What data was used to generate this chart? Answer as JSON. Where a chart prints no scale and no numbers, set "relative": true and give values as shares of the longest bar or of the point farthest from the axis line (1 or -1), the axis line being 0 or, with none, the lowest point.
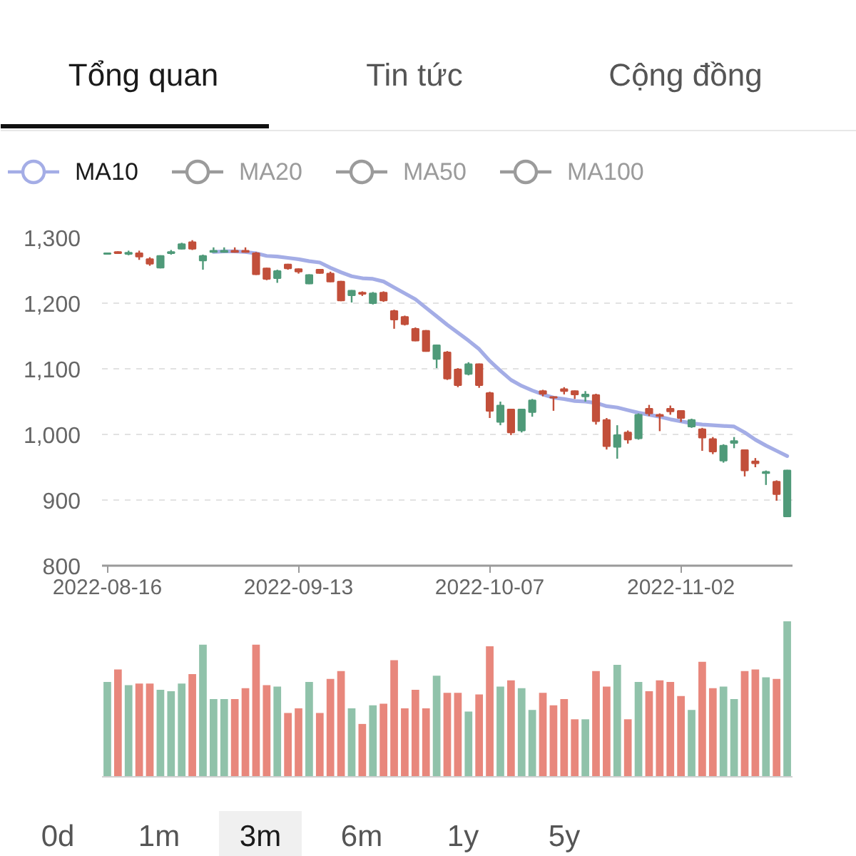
{
  "chart_data": [
    {
      "type": "candlestick",
      "categories": [
        "2022-08-16",
        null,
        null,
        null,
        null,
        null,
        null,
        null,
        null,
        null,
        null,
        null,
        null,
        null,
        null,
        null,
        null,
        null,
        "2022-09-13",
        null,
        null,
        null,
        null,
        null,
        null,
        null,
        null,
        null,
        null,
        null,
        null,
        null,
        null,
        null,
        null,
        null,
        "2022-10-07",
        null,
        null,
        null,
        null,
        null,
        null,
        null,
        null,
        null,
        null,
        null,
        null,
        null,
        null,
        null,
        null,
        null,
        "2022-11-02",
        null,
        null,
        null,
        null,
        null,
        null,
        null,
        null,
        null,
        null
      ],
      "ohlc": [
        [
          1275,
          1277,
          1274,
          1276
        ],
        [
          1278,
          1279,
          1275,
          1276
        ],
        [
          1275,
          1280,
          1273,
          1277
        ],
        [
          1276,
          1280,
          1266,
          1271
        ],
        [
          1267,
          1270,
          1257,
          1260
        ],
        [
          1254,
          1273,
          1253,
          1272
        ],
        [
          1276,
          1281,
          1274,
          1278
        ],
        [
          1283,
          1292,
          1282,
          1290
        ],
        [
          1293,
          1296,
          1281,
          1283
        ],
        [
          1265,
          1274,
          1251,
          1272
        ],
        [
          1278,
          1285,
          1277,
          1280
        ],
        [
          1278,
          1285,
          1277,
          1280
        ],
        [
          1280,
          1285,
          1277,
          1278
        ],
        [
          1280,
          1285,
          1277,
          1278
        ],
        [
          1276,
          1278,
          1243,
          1244
        ],
        [
          1253,
          1254,
          1235,
          1237
        ],
        [
          1238,
          1251,
          1231,
          1249
        ],
        [
          1259,
          1260,
          1251,
          1253
        ],
        [
          1252,
          1253,
          1245,
          1248
        ],
        [
          1230,
          1244,
          1229,
          1243
        ],
        [
          1251,
          1252,
          1245,
          1246
        ],
        [
          1245,
          1248,
          1232,
          1233
        ],
        [
          1233,
          1234,
          1203,
          1204
        ],
        [
          1212,
          1220,
          1201,
          1219
        ],
        [
          1216,
          1218,
          1211,
          1214
        ],
        [
          1200,
          1217,
          1198,
          1215
        ],
        [
          1216,
          1218,
          1202,
          1204
        ],
        [
          1188,
          1190,
          1161,
          1175
        ],
        [
          1179,
          1181,
          1166,
          1168
        ],
        [
          1161,
          1163,
          1142,
          1143
        ],
        [
          1158,
          1159,
          1126,
          1127
        ],
        [
          1115,
          1137,
          1101,
          1136
        ],
        [
          1125,
          1127,
          1083,
          1085
        ],
        [
          1099,
          1101,
          1072,
          1075
        ],
        [
          1092,
          1110,
          1090,
          1107
        ],
        [
          1107,
          1108,
          1071,
          1075
        ],
        [
          1063,
          1065,
          1025,
          1036
        ],
        [
          1019,
          1050,
          1014,
          1044
        ],
        [
          1038,
          1039,
          999,
          1003
        ],
        [
          1006,
          1039,
          1003,
          1038
        ],
        [
          1034,
          1054,
          1027,
          1052
        ],
        [
          1066,
          1068,
          1058,
          1062
        ],
        [
          1057,
          1058,
          1036,
          1056
        ],
        [
          1069,
          1072,
          1061,
          1066
        ],
        [
          1066,
          1067,
          1054,
          1061
        ],
        [
          1058,
          1066,
          1050,
          1061
        ],
        [
          1060,
          1062,
          1015,
          1020
        ],
        [
          1022,
          1025,
          977,
          982
        ],
        [
          981,
          1014,
          963,
          999
        ],
        [
          1003,
          1006,
          986,
          992
        ],
        [
          994,
          1032,
          992,
          1030
        ],
        [
          1039,
          1045,
          1028,
          1032
        ],
        [
          1030,
          1032,
          1005,
          1028
        ],
        [
          1039,
          1044,
          1030,
          1035
        ],
        [
          1036,
          1037,
          1019,
          1025
        ],
        [
          1012,
          1024,
          1010,
          1022
        ],
        [
          1008,
          1010,
          975,
          995
        ],
        [
          993,
          996,
          970,
          974
        ],
        [
          960,
          985,
          957,
          983
        ],
        [
          987,
          996,
          979,
          990
        ],
        [
          976,
          977,
          936,
          945
        ],
        [
          959,
          964,
          950,
          956
        ],
        [
          941,
          945,
          923,
          943
        ],
        [
          928,
          930,
          899,
          909
        ],
        [
          875,
          946,
          874,
          945
        ]
      ],
      "colors": [
        "#4f9a79",
        "#c24f3a",
        "#4f9a79",
        "#c24f3a",
        "#c24f3a",
        "#4f9a79",
        "#4f9a79",
        "#4f9a79",
        "#c24f3a",
        "#4f9a79",
        "#4f9a79",
        "#4f9a79",
        "#c24f3a",
        "#c24f3a",
        "#c24f3a",
        "#c24f3a",
        "#4f9a79",
        "#c24f3a",
        "#c24f3a",
        "#4f9a79",
        "#c24f3a",
        "#c24f3a",
        "#c24f3a",
        "#4f9a79",
        "#c24f3a",
        "#4f9a79",
        "#c24f3a",
        "#c24f3a",
        "#c24f3a",
        "#c24f3a",
        "#c24f3a",
        "#4f9a79",
        "#c24f3a",
        "#c24f3a",
        "#4f9a79",
        "#c24f3a",
        "#c24f3a",
        "#4f9a79",
        "#c24f3a",
        "#4f9a79",
        "#4f9a79",
        "#c24f3a",
        "#c24f3a",
        "#c24f3a",
        "#c24f3a",
        "#4f9a79",
        "#c24f3a",
        "#c24f3a",
        "#4f9a79",
        "#c24f3a",
        "#4f9a79",
        "#c24f3a",
        "#c24f3a",
        "#c24f3a",
        "#c24f3a",
        "#4f9a79",
        "#c24f3a",
        "#c24f3a",
        "#4f9a79",
        "#4f9a79",
        "#c24f3a",
        "#c24f3a",
        "#4f9a79",
        "#c24f3a",
        "#4f9a79"
      ],
      "series": [
        {
          "name": "MA10",
          "type": "line",
          "color": "#a4ade6",
          "values": [
            null,
            null,
            null,
            null,
            null,
            null,
            null,
            null,
            null,
            null,
            1278,
            1279,
            1279,
            1278,
            1276,
            1272,
            1271,
            1269,
            1267,
            1264,
            1262,
            1254,
            1247,
            1241,
            1238,
            1237,
            1233,
            1224,
            1215,
            1206,
            1193,
            1180,
            1167,
            1155,
            1143,
            1130,
            1112,
            1097,
            1083,
            1074,
            1067,
            1061,
            1056,
            1054,
            1051,
            1050,
            1048,
            1043,
            1041,
            1037,
            1033,
            1030,
            1027,
            1023,
            1020,
            1017,
            1015,
            1014,
            1013,
            1012,
            1003,
            992,
            983,
            975,
            967
          ]
        },
        {
          "name": "MA20",
          "type": "line",
          "color": "#9b9b9b",
          "values": [
            null,
            null,
            null,
            null,
            null,
            null,
            null,
            null,
            null,
            null,
            null,
            null,
            null,
            null,
            null,
            null,
            null,
            null,
            null,
            null,
            null,
            null,
            null,
            null,
            null,
            null,
            null,
            null,
            null,
            null,
            null,
            null,
            null,
            null,
            null,
            null,
            null,
            null,
            null,
            null,
            null,
            null,
            null,
            null,
            null,
            null,
            null,
            null,
            null,
            null,
            null,
            null,
            null,
            null,
            null,
            null,
            null,
            null,
            null,
            null,
            null,
            null,
            null,
            null,
            null
          ]
        },
        {
          "name": "MA50",
          "type": "line",
          "color": "#9b9b9b",
          "values": [
            null,
            null,
            null,
            null,
            null,
            null,
            null,
            null,
            null,
            null,
            null,
            null,
            null,
            null,
            null,
            null,
            null,
            null,
            null,
            null,
            null,
            null,
            null,
            null,
            null,
            null,
            null,
            null,
            null,
            null,
            null,
            null,
            null,
            null,
            null,
            null,
            null,
            null,
            null,
            null,
            null,
            null,
            null,
            null,
            null,
            null,
            null,
            null,
            null,
            null,
            null,
            null,
            null,
            null,
            null,
            null,
            null,
            null,
            null,
            null,
            null,
            null,
            null,
            null,
            null
          ]
        },
        {
          "name": "MA100",
          "type": "line",
          "color": "#9b9b9b",
          "values": [
            null,
            null,
            null,
            null,
            null,
            null,
            null,
            null,
            null,
            null,
            null,
            null,
            null,
            null,
            null,
            null,
            null,
            null,
            null,
            null,
            null,
            null,
            null,
            null,
            null,
            null,
            null,
            null,
            null,
            null,
            null,
            null,
            null,
            null,
            null,
            null,
            null,
            null,
            null,
            null,
            null,
            null,
            null,
            null,
            null,
            null,
            null,
            null,
            null,
            null,
            null,
            null,
            null,
            null,
            null,
            null,
            null,
            null,
            null,
            null,
            null,
            null,
            null,
            null,
            null
          ]
        }
      ],
      "ylim": [
        800,
        1300
      ],
      "yticks": [
        800,
        900,
        {
          "value": 1000,
          "label": "1,000"
        },
        {
          "value": 1100,
          "label": "1,100"
        },
        {
          "value": 1200,
          "label": "1,200"
        },
        {
          "value": 1300,
          "label": "1,300"
        }
      ],
      "grid": "y",
      "legend": "top left",
      "annotations": [
        "Tổng quan",
        "Tin tức",
        "Cộng đồng",
        "0d",
        "1m",
        "3m",
        "6m",
        "1y",
        "5y"
      ]
    },
    {
      "type": "bar",
      "relative": true,
      "tick_labels": false,
      "categories": [
        "2022-08-16",
        null,
        null,
        null,
        null,
        null,
        null,
        null,
        null,
        null,
        null,
        null,
        null,
        null,
        null,
        null,
        null,
        null,
        "2022-09-13",
        null,
        null,
        null,
        null,
        null,
        null,
        null,
        null,
        null,
        null,
        null,
        null,
        null,
        null,
        null,
        null,
        null,
        "2022-10-07",
        null,
        null,
        null,
        null,
        null,
        null,
        null,
        null,
        null,
        null,
        null,
        null,
        null,
        null,
        null,
        null,
        null,
        "2022-11-02",
        null,
        null,
        null,
        null,
        null,
        null,
        null,
        null,
        null,
        null
      ],
      "values": [
        0.61,
        0.69,
        0.59,
        0.6,
        0.6,
        0.56,
        0.55,
        0.6,
        0.66,
        0.85,
        0.5,
        0.5,
        0.5,
        0.57,
        0.85,
        0.59,
        0.58,
        0.41,
        0.44,
        0.61,
        0.41,
        0.63,
        0.68,
        0.44,
        0.34,
        0.46,
        0.47,
        0.75,
        0.44,
        0.56,
        0.44,
        0.65,
        0.54,
        0.54,
        0.42,
        0.53,
        0.84,
        0.58,
        0.62,
        0.57,
        0.43,
        0.54,
        0.46,
        0.5,
        0.37,
        0.37,
        0.68,
        0.58,
        0.72,
        0.37,
        0.61,
        0.55,
        0.62,
        0.61,
        0.52,
        0.43,
        0.74,
        0.57,
        0.58,
        0.5,
        0.68,
        0.69,
        0.64,
        0.63,
        1
      ],
      "colors": [
        "#90c2aa",
        "#e8877c",
        "#90c2aa",
        "#e8877c",
        "#e8877c",
        "#90c2aa",
        "#90c2aa",
        "#90c2aa",
        "#e8877c",
        "#90c2aa",
        "#90c2aa",
        "#90c2aa",
        "#e8877c",
        "#e8877c",
        "#e8877c",
        "#e8877c",
        "#90c2aa",
        "#e8877c",
        "#e8877c",
        "#90c2aa",
        "#e8877c",
        "#e8877c",
        "#e8877c",
        "#90c2aa",
        "#e8877c",
        "#90c2aa",
        "#e8877c",
        "#e8877c",
        "#e8877c",
        "#e8877c",
        "#e8877c",
        "#90c2aa",
        "#e8877c",
        "#e8877c",
        "#90c2aa",
        "#e8877c",
        "#e8877c",
        "#90c2aa",
        "#e8877c",
        "#90c2aa",
        "#90c2aa",
        "#e8877c",
        "#e8877c",
        "#e8877c",
        "#e8877c",
        "#90c2aa",
        "#e8877c",
        "#e8877c",
        "#90c2aa",
        "#e8877c",
        "#90c2aa",
        "#e8877c",
        "#e8877c",
        "#e8877c",
        "#e8877c",
        "#90c2aa",
        "#e8877c",
        "#e8877c",
        "#90c2aa",
        "#90c2aa",
        "#e8877c",
        "#e8877c",
        "#90c2aa",
        "#e8877c",
        "#90c2aa"
      ]
    }
  ]
}
